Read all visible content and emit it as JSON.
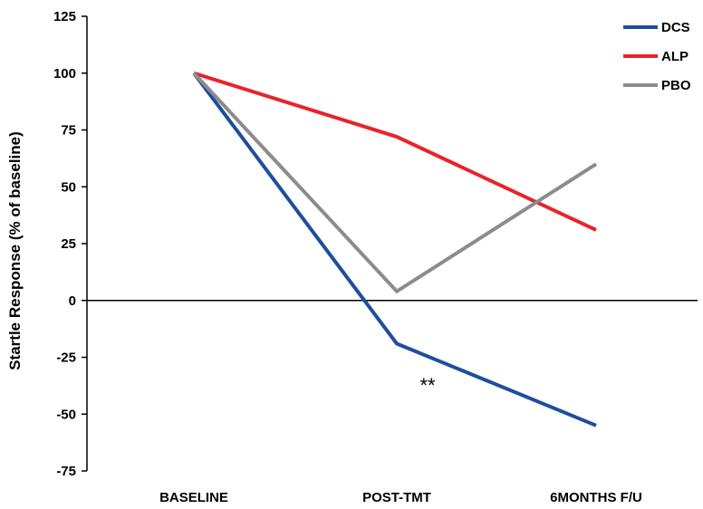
{
  "chart_data": {
    "type": "line",
    "title": "",
    "xlabel": "",
    "ylabel": "Startle Response (% of baseline)",
    "categories": [
      "BASELINE",
      "POST-TMT",
      "6MONTHS F/U"
    ],
    "ylim": [
      -75,
      125
    ],
    "yticks": [
      125,
      100,
      75,
      50,
      25,
      0,
      -25,
      -50,
      -75
    ],
    "ytick_labels": [
      "125",
      "100",
      "75",
      "50",
      "25",
      "0",
      "-25",
      "-50",
      "-75"
    ],
    "grid": false,
    "legend_position": "top-right",
    "series": [
      {
        "name": "DCS",
        "color": "#1f4e9e",
        "values": [
          100,
          -19,
          -55
        ]
      },
      {
        "name": "ALP",
        "color": "#e8232a",
        "values": [
          100,
          72,
          31
        ]
      },
      {
        "name": "PBO",
        "color": "#8c8c8c",
        "values": [
          100,
          4,
          60
        ]
      }
    ],
    "annotations": [
      {
        "text": "**",
        "category": "POST-TMT",
        "y": -38
      }
    ]
  }
}
